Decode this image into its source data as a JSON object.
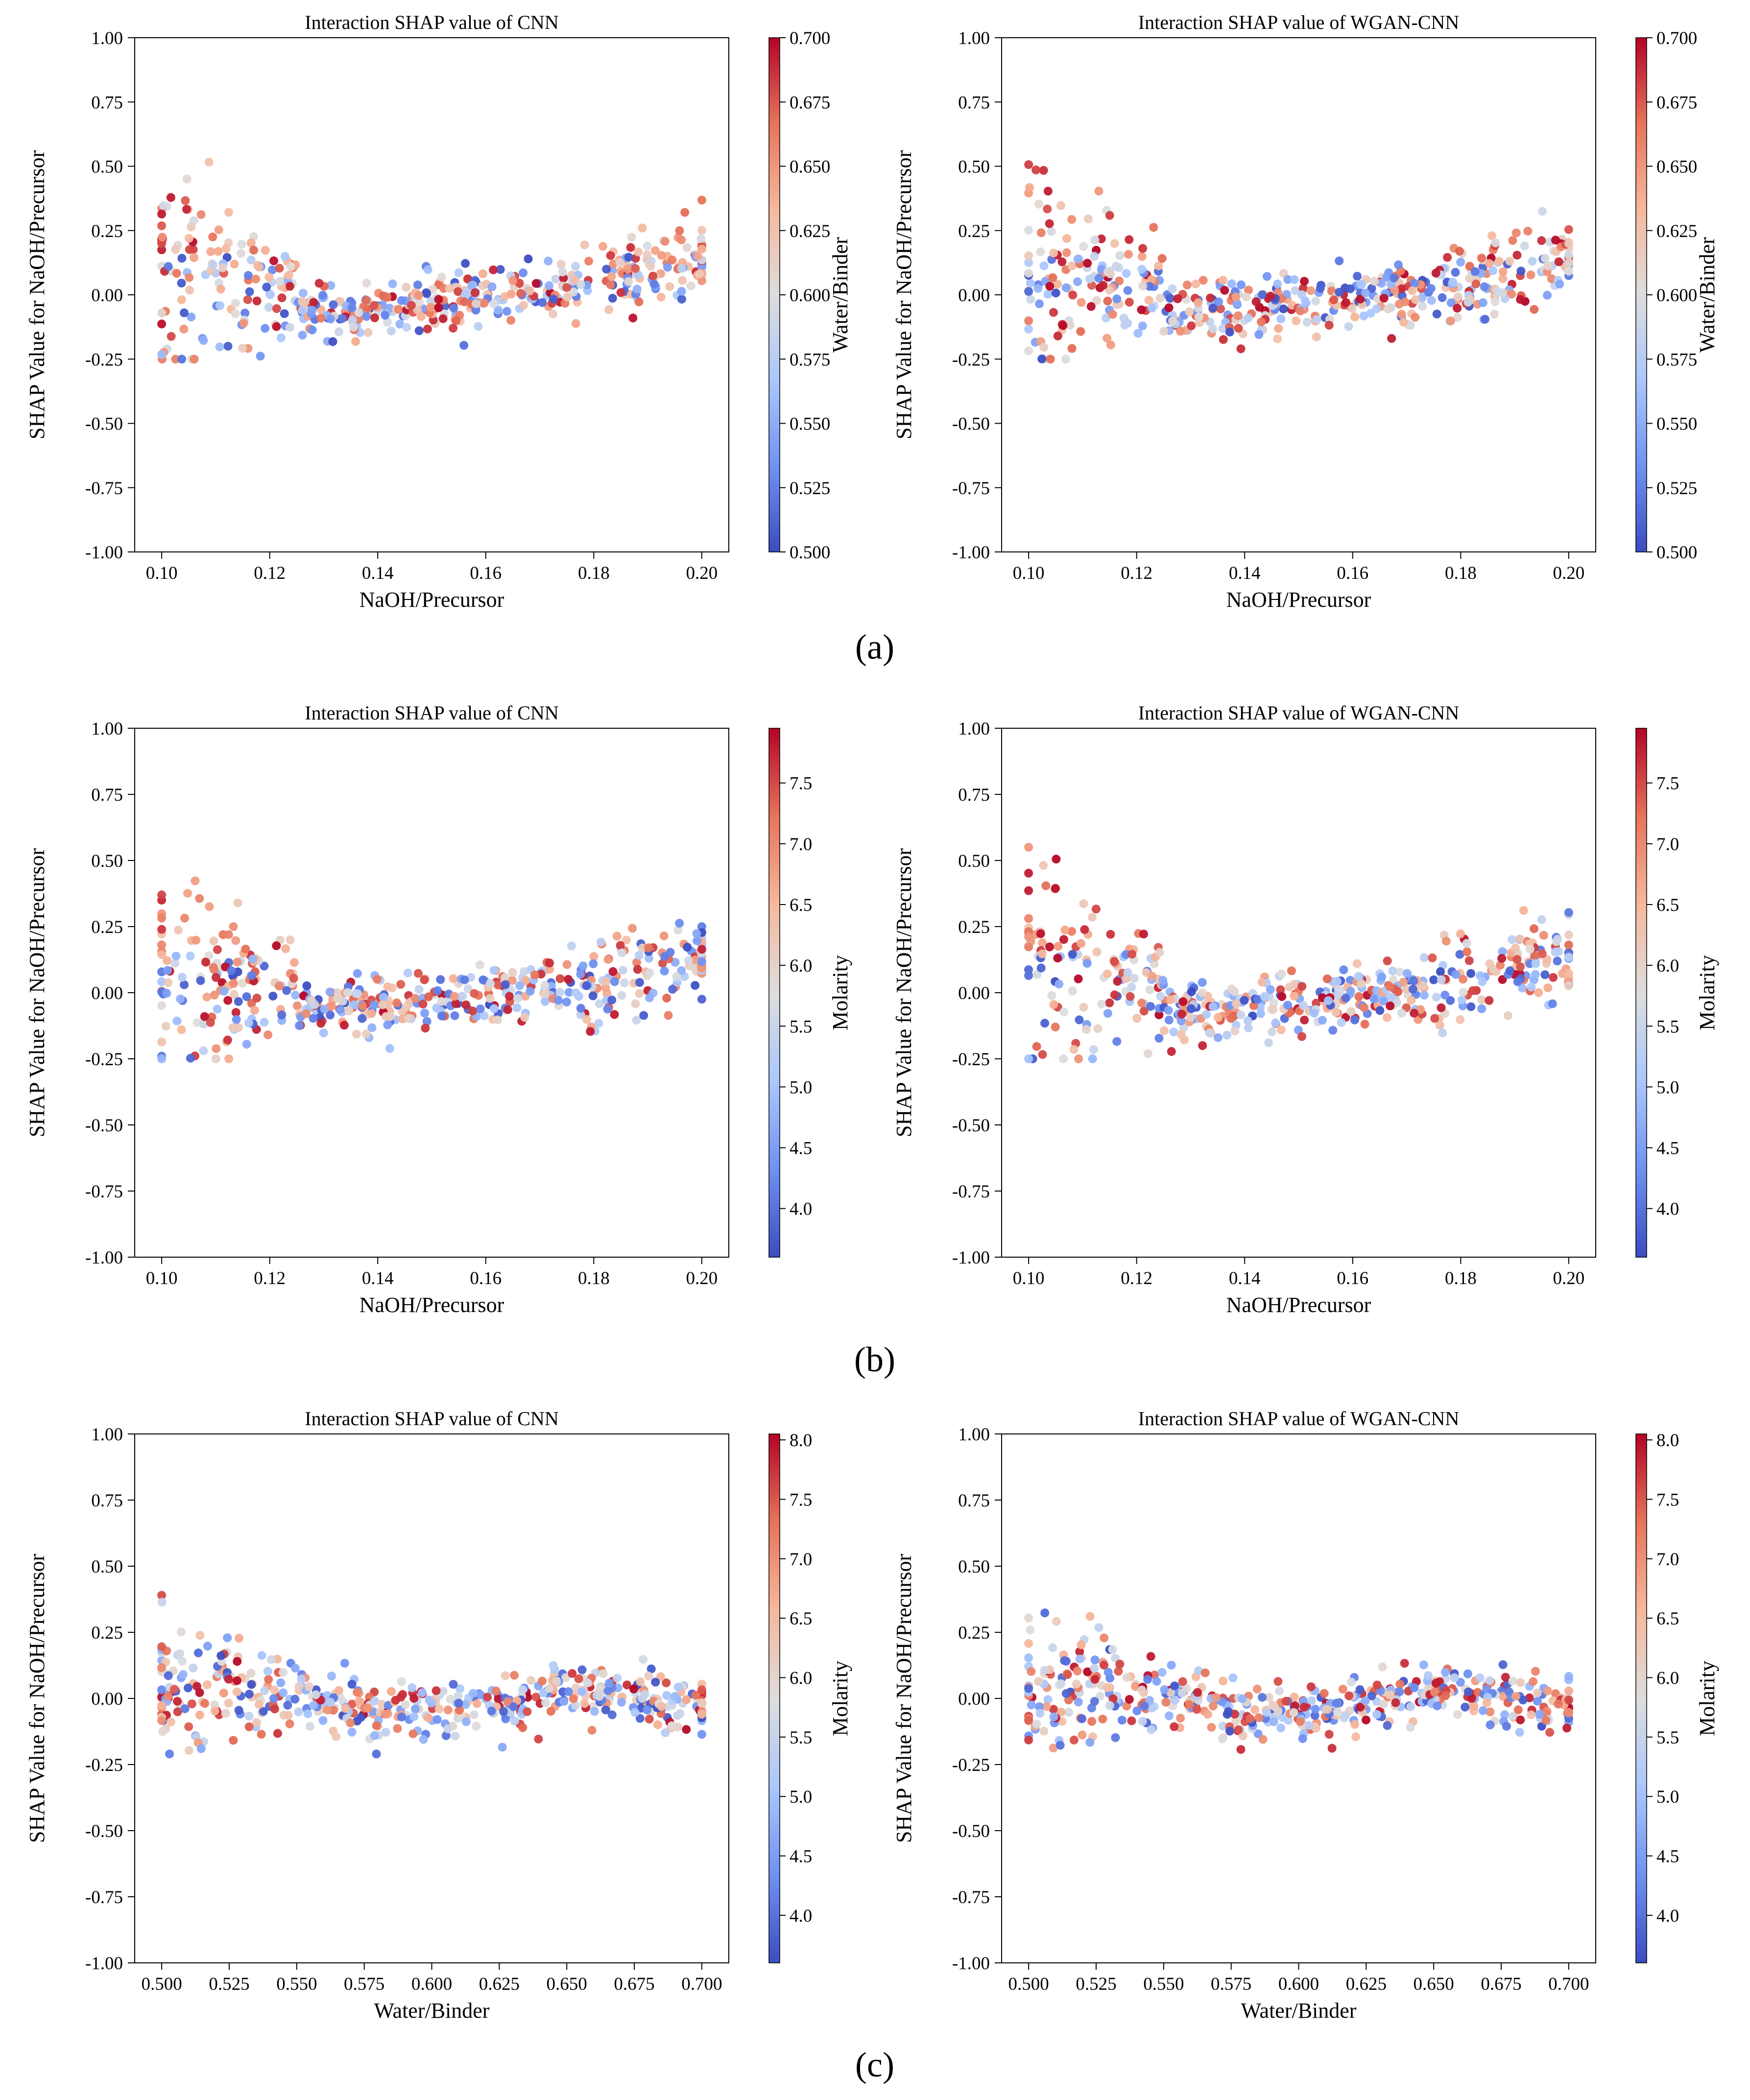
{
  "figure": {
    "panel_labels": [
      "(a)",
      "(b)",
      "(c)"
    ]
  },
  "colormap": {
    "name": "coolwarm",
    "stops": [
      "#3b4cc0",
      "#6f92f3",
      "#aac7fd",
      "#dddddd",
      "#f7b89c",
      "#e7745b",
      "#b40426"
    ]
  },
  "chart_data": [
    {
      "id": "a1",
      "type": "scatter",
      "title": "Interaction SHAP value of CNN",
      "xlabel": "NaOH/Precursor",
      "ylabel": "SHAP Value for NaOH/Precursor",
      "xlim": [
        0.095,
        0.205
      ],
      "ylim": [
        -1.0,
        1.0
      ],
      "xticks": [
        "0.10",
        "0.12",
        "0.14",
        "0.16",
        "0.18",
        "0.20"
      ],
      "yticks": [
        "1.00",
        "0.75",
        "0.50",
        "0.25",
        "0.00",
        "-0.25",
        "-0.50",
        "-0.75",
        "-1.00"
      ],
      "colorbar": {
        "label": "Water/Binder",
        "range": [
          0.5,
          0.7
        ],
        "ticks": [
          "0.700",
          "0.675",
          "0.650",
          "0.625",
          "0.600",
          "0.575",
          "0.550",
          "0.525",
          "0.500"
        ]
      },
      "pattern": {
        "x_range": [
          0.1,
          0.2
        ],
        "n_points": 520,
        "seed": 11,
        "shape": "naoh",
        "color_mode": "wb"
      }
    },
    {
      "id": "a2",
      "type": "scatter",
      "title": "Interaction SHAP value of WGAN-CNN",
      "xlabel": "NaOH/Precursor",
      "ylabel": "SHAP Value for NaOH/Precursor",
      "xlim": [
        0.095,
        0.205
      ],
      "ylim": [
        -1.0,
        1.0
      ],
      "xticks": [
        "0.10",
        "0.12",
        "0.14",
        "0.16",
        "0.18",
        "0.20"
      ],
      "yticks": [
        "1.00",
        "0.75",
        "0.50",
        "0.25",
        "0.00",
        "-0.25",
        "-0.50",
        "-0.75",
        "-1.00"
      ],
      "colorbar": {
        "label": "Water/Binder",
        "range": [
          0.5,
          0.7
        ],
        "ticks": [
          "0.700",
          "0.675",
          "0.650",
          "0.625",
          "0.600",
          "0.575",
          "0.550",
          "0.525",
          "0.500"
        ]
      },
      "pattern": {
        "x_range": [
          0.1,
          0.2
        ],
        "n_points": 520,
        "seed": 12,
        "shape": "naoh",
        "color_mode": "wb"
      }
    },
    {
      "id": "b1",
      "type": "scatter",
      "title": "Interaction SHAP value of CNN",
      "xlabel": "NaOH/Precursor",
      "ylabel": "SHAP Value for NaOH/Precursor",
      "xlim": [
        0.095,
        0.205
      ],
      "ylim": [
        -1.0,
        1.0
      ],
      "xticks": [
        "0.10",
        "0.12",
        "0.14",
        "0.16",
        "0.18",
        "0.20"
      ],
      "yticks": [
        "1.00",
        "0.75",
        "0.50",
        "0.25",
        "0.00",
        "-0.25",
        "-0.50",
        "-0.75",
        "-1.00"
      ],
      "colorbar": {
        "label": "Molarity",
        "range": [
          3.6,
          7.95
        ],
        "ticks": [
          "7.5",
          "7.0",
          "6.5",
          "6.0",
          "5.5",
          "5.0",
          "4.5",
          "4.0"
        ]
      },
      "pattern": {
        "x_range": [
          0.1,
          0.2
        ],
        "n_points": 520,
        "seed": 21,
        "shape": "naoh",
        "color_mode": "mol"
      }
    },
    {
      "id": "b2",
      "type": "scatter",
      "title": "Interaction SHAP value of WGAN-CNN",
      "xlabel": "NaOH/Precursor",
      "ylabel": "SHAP Value for NaOH/Precursor",
      "xlim": [
        0.095,
        0.205
      ],
      "ylim": [
        -1.0,
        1.0
      ],
      "xticks": [
        "0.10",
        "0.12",
        "0.14",
        "0.16",
        "0.18",
        "0.20"
      ],
      "yticks": [
        "1.00",
        "0.75",
        "0.50",
        "0.25",
        "0.00",
        "-0.25",
        "-0.50",
        "-0.75",
        "-1.00"
      ],
      "colorbar": {
        "label": "Molarity",
        "range": [
          3.6,
          7.95
        ],
        "ticks": [
          "7.5",
          "7.0",
          "6.5",
          "6.0",
          "5.5",
          "5.0",
          "4.5",
          "4.0"
        ]
      },
      "pattern": {
        "x_range": [
          0.1,
          0.2
        ],
        "n_points": 520,
        "seed": 22,
        "shape": "naoh",
        "color_mode": "mol"
      }
    },
    {
      "id": "c1",
      "type": "scatter",
      "title": "Interaction SHAP value of CNN",
      "xlabel": "Water/Binder",
      "ylabel": "SHAP Value for NaOH/Precursor",
      "xlim": [
        0.49,
        0.71
      ],
      "ylim": [
        -1.0,
        1.0
      ],
      "xticks": [
        "0.500",
        "0.525",
        "0.550",
        "0.575",
        "0.600",
        "0.625",
        "0.650",
        "0.675",
        "0.700"
      ],
      "yticks": [
        "1.00",
        "0.75",
        "0.50",
        "0.25",
        "0.00",
        "-0.25",
        "-0.50",
        "-0.75",
        "-1.00"
      ],
      "colorbar": {
        "label": "Molarity",
        "range": [
          3.6,
          8.05
        ],
        "ticks": [
          "8.0",
          "7.5",
          "7.0",
          "6.5",
          "6.0",
          "5.5",
          "5.0",
          "4.5",
          "4.0"
        ]
      },
      "pattern": {
        "x_range": [
          0.5,
          0.7
        ],
        "n_points": 520,
        "seed": 31,
        "shape": "wb",
        "color_mode": "mol"
      }
    },
    {
      "id": "c2",
      "type": "scatter",
      "title": "Interaction SHAP value of WGAN-CNN",
      "xlabel": "Water/Binder",
      "ylabel": "SHAP Value for NaOH/Precursor",
      "xlim": [
        0.49,
        0.71
      ],
      "ylim": [
        -1.0,
        1.0
      ],
      "xticks": [
        "0.500",
        "0.525",
        "0.550",
        "0.575",
        "0.600",
        "0.625",
        "0.650",
        "0.675",
        "0.700"
      ],
      "yticks": [
        "1.00",
        "0.75",
        "0.50",
        "0.25",
        "0.00",
        "-0.25",
        "-0.50",
        "-0.75",
        "-1.00"
      ],
      "colorbar": {
        "label": "Molarity",
        "range": [
          3.6,
          8.05
        ],
        "ticks": [
          "8.0",
          "7.5",
          "7.0",
          "6.5",
          "6.0",
          "5.5",
          "5.0",
          "4.5",
          "4.0"
        ]
      },
      "pattern": {
        "x_range": [
          0.5,
          0.7
        ],
        "n_points": 520,
        "seed": 32,
        "shape": "wb",
        "color_mode": "mol"
      }
    }
  ]
}
